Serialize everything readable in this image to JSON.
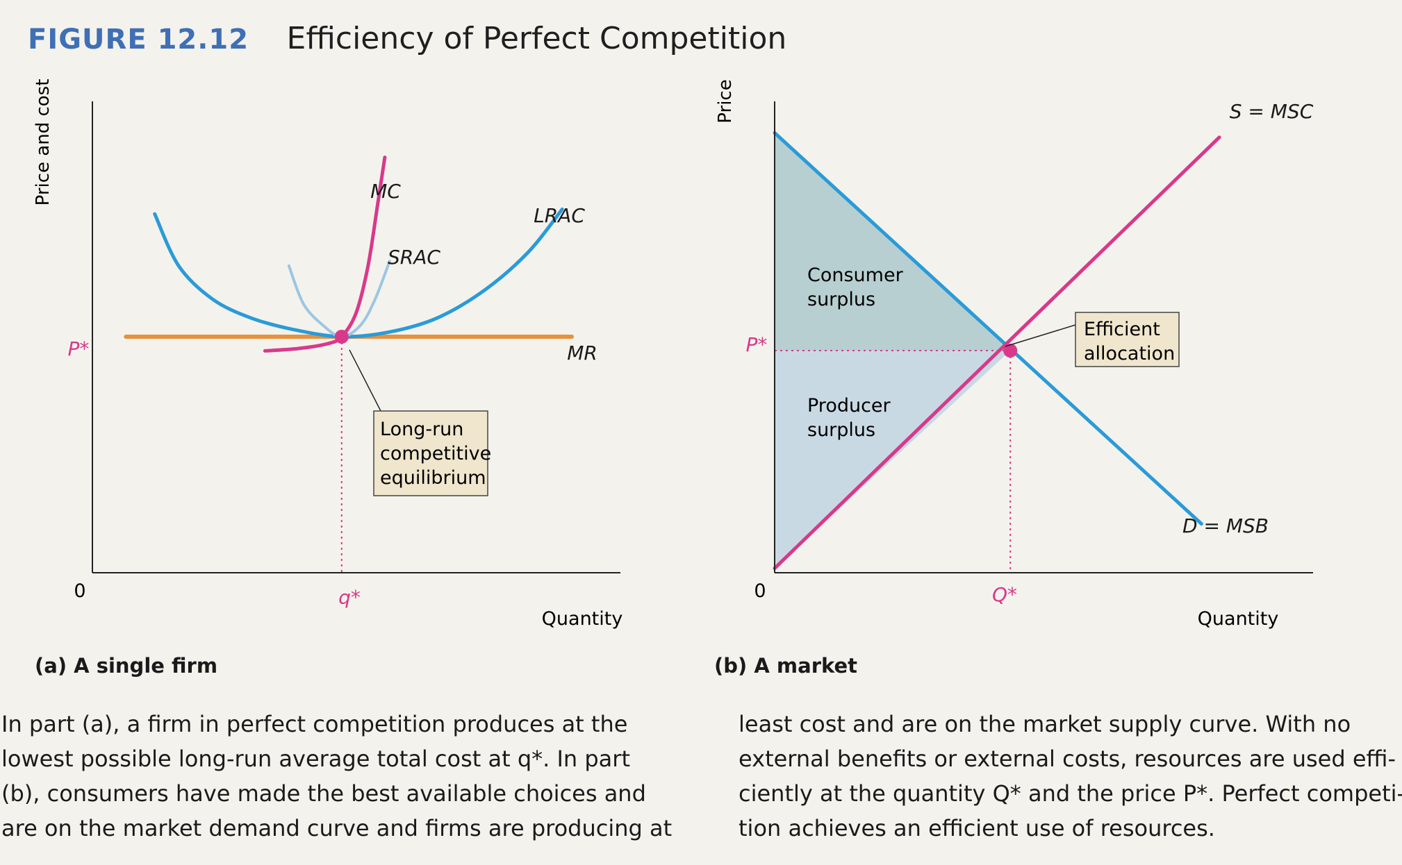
{
  "figure": {
    "label": "FIGURE 12.12",
    "title": "Efficiency of Perfect Competition"
  },
  "colors": {
    "title_blue": "#3f6fb4",
    "curve_blue": "#2a9bd8",
    "curve_light_blue": "#9cc6e4",
    "magenta": "#d8398a",
    "orange": "#e8913c",
    "box_fill": "#efe6cd",
    "consumer_surplus": "#b7cfd1",
    "producer_surplus": "#c9d9e4"
  },
  "panels": {
    "a": {
      "caption": "(a) A single firm",
      "ylabel": "Price and cost",
      "xlabel": "Quantity",
      "origin": "0",
      "price_label": "P*",
      "quantity_label": "q*",
      "callout": [
        "Long-run",
        "competitive",
        "equilibrium"
      ]
    },
    "b": {
      "caption": "(b) A market",
      "ylabel": "Price",
      "xlabel": "Quantity",
      "origin": "0",
      "price_label": "P*",
      "quantity_label": "Q*",
      "consumer_surplus": [
        "Consumer",
        "surplus"
      ],
      "producer_surplus": [
        "Producer",
        "surplus"
      ],
      "callout": [
        "Efficient",
        "allocation"
      ]
    }
  },
  "chart_data": [
    {
      "type": "line",
      "panel": "a",
      "title": "",
      "xlabel": "Quantity",
      "ylabel": "Price and cost",
      "xlim": [
        0,
        100
      ],
      "ylim": [
        0,
        100
      ],
      "x_tick_labels": [
        "0",
        "q*"
      ],
      "y_tick_labels": [
        "P*"
      ],
      "equilibrium": {
        "x": 52,
        "y": 50,
        "label": "q*",
        "price_label": "P*"
      },
      "series": [
        {
          "name": "MR",
          "color": "#e8913c",
          "points": [
            [
              7,
              50
            ],
            [
              100,
              50
            ]
          ]
        },
        {
          "name": "LRAC",
          "color": "#2a9bd8",
          "points": [
            [
              13,
              76
            ],
            [
              18,
              65
            ],
            [
              25,
              58
            ],
            [
              33,
              54
            ],
            [
              42,
              51.5
            ],
            [
              52,
              50
            ],
            [
              62,
              51
            ],
            [
              72,
              54
            ],
            [
              82,
              60
            ],
            [
              91,
              68
            ],
            [
              98,
              77
            ]
          ]
        },
        {
          "name": "SRAC",
          "color": "#2a9bd8",
          "points": [
            [
              41,
              65
            ],
            [
              44,
              57
            ],
            [
              48,
              52.5
            ],
            [
              52,
              50
            ],
            [
              56,
              52.5
            ],
            [
              59,
              58
            ],
            [
              62,
              66
            ]
          ]
        },
        {
          "name": "MC",
          "color": "#d8398a",
          "points": [
            [
              36,
              47
            ],
            [
              43,
              47.5
            ],
            [
              49,
              48.5
            ],
            [
              52,
              50
            ],
            [
              55,
              55
            ],
            [
              57.5,
              65
            ],
            [
              59.5,
              78
            ],
            [
              61,
              88
            ]
          ]
        }
      ],
      "annotations": [
        "Long-run competitive equilibrium"
      ]
    },
    {
      "type": "line",
      "panel": "b",
      "title": "",
      "xlabel": "Quantity",
      "ylabel": "Price",
      "xlim": [
        0,
        100
      ],
      "ylim": [
        0,
        100
      ],
      "x_tick_labels": [
        "0",
        "Q*"
      ],
      "y_tick_labels": [
        "P*"
      ],
      "equilibrium": {
        "x": 53,
        "y": 50,
        "label": "Q*",
        "price_label": "P*"
      },
      "series": [
        {
          "name": "S = MSC",
          "color": "#d8398a",
          "points": [
            [
              0,
              1
            ],
            [
              100,
              98
            ]
          ]
        },
        {
          "name": "D = MSB",
          "color": "#2a9bd8",
          "points": [
            [
              0,
              99
            ],
            [
              96,
              11
            ]
          ]
        }
      ],
      "regions": [
        {
          "name": "Consumer surplus",
          "color": "#b7cfd1"
        },
        {
          "name": "Producer surplus",
          "color": "#c9d9e4"
        }
      ],
      "annotations": [
        "Efficient allocation"
      ]
    }
  ],
  "caption_text": {
    "left": [
      "In part (a), a firm in perfect competition produces at the",
      "lowest possible long-run average total cost at q*. In part",
      "(b), consumers have made the best available choices and",
      "are on the market demand curve and firms are producing at"
    ],
    "right": [
      "least cost and are on the market supply curve. With no",
      "external benefits or external costs, resources are used effi-",
      "ciently at the quantity Q* and the price P*. Perfect competi-",
      "tion achieves an efficient use of resources."
    ]
  }
}
